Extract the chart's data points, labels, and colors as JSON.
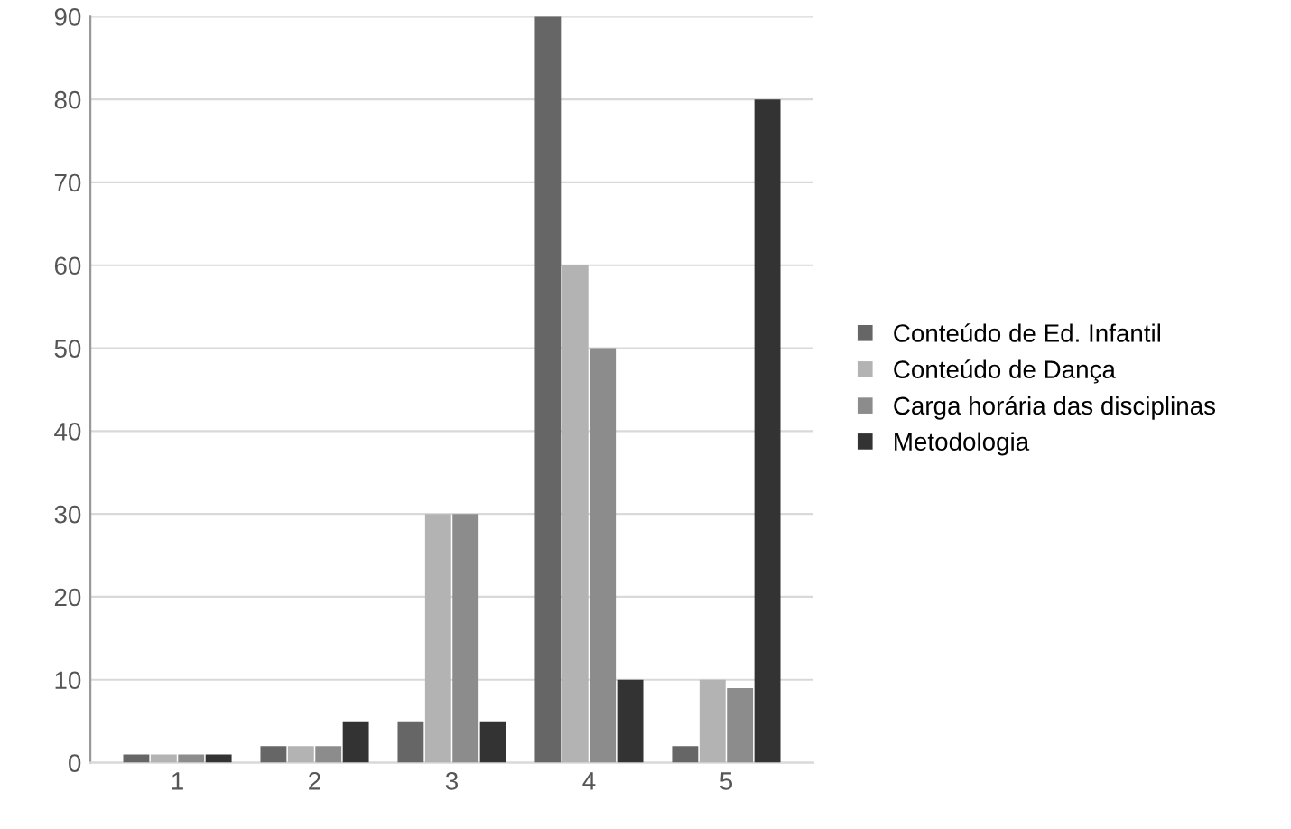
{
  "chart_data": {
    "type": "bar",
    "categories": [
      "1",
      "2",
      "3",
      "4",
      "5"
    ],
    "series": [
      {
        "name": "Conteúdo de Ed. Infantil",
        "color": "#666666",
        "values": [
          1,
          2,
          5,
          90,
          2
        ]
      },
      {
        "name": "Conteúdo de Dança",
        "color": "#b3b3b3",
        "values": [
          1,
          2,
          30,
          60,
          10
        ]
      },
      {
        "name": "Carga horária das disciplinas",
        "color": "#8c8c8c",
        "values": [
          1,
          2,
          30,
          50,
          9
        ]
      },
      {
        "name": "Metodologia",
        "color": "#333333",
        "values": [
          1,
          5,
          5,
          10,
          80
        ]
      }
    ],
    "ylim": [
      0,
      90
    ],
    "yticks": [
      0,
      10,
      20,
      30,
      40,
      50,
      60,
      70,
      80,
      90
    ],
    "grid": "y",
    "legend": "right"
  }
}
